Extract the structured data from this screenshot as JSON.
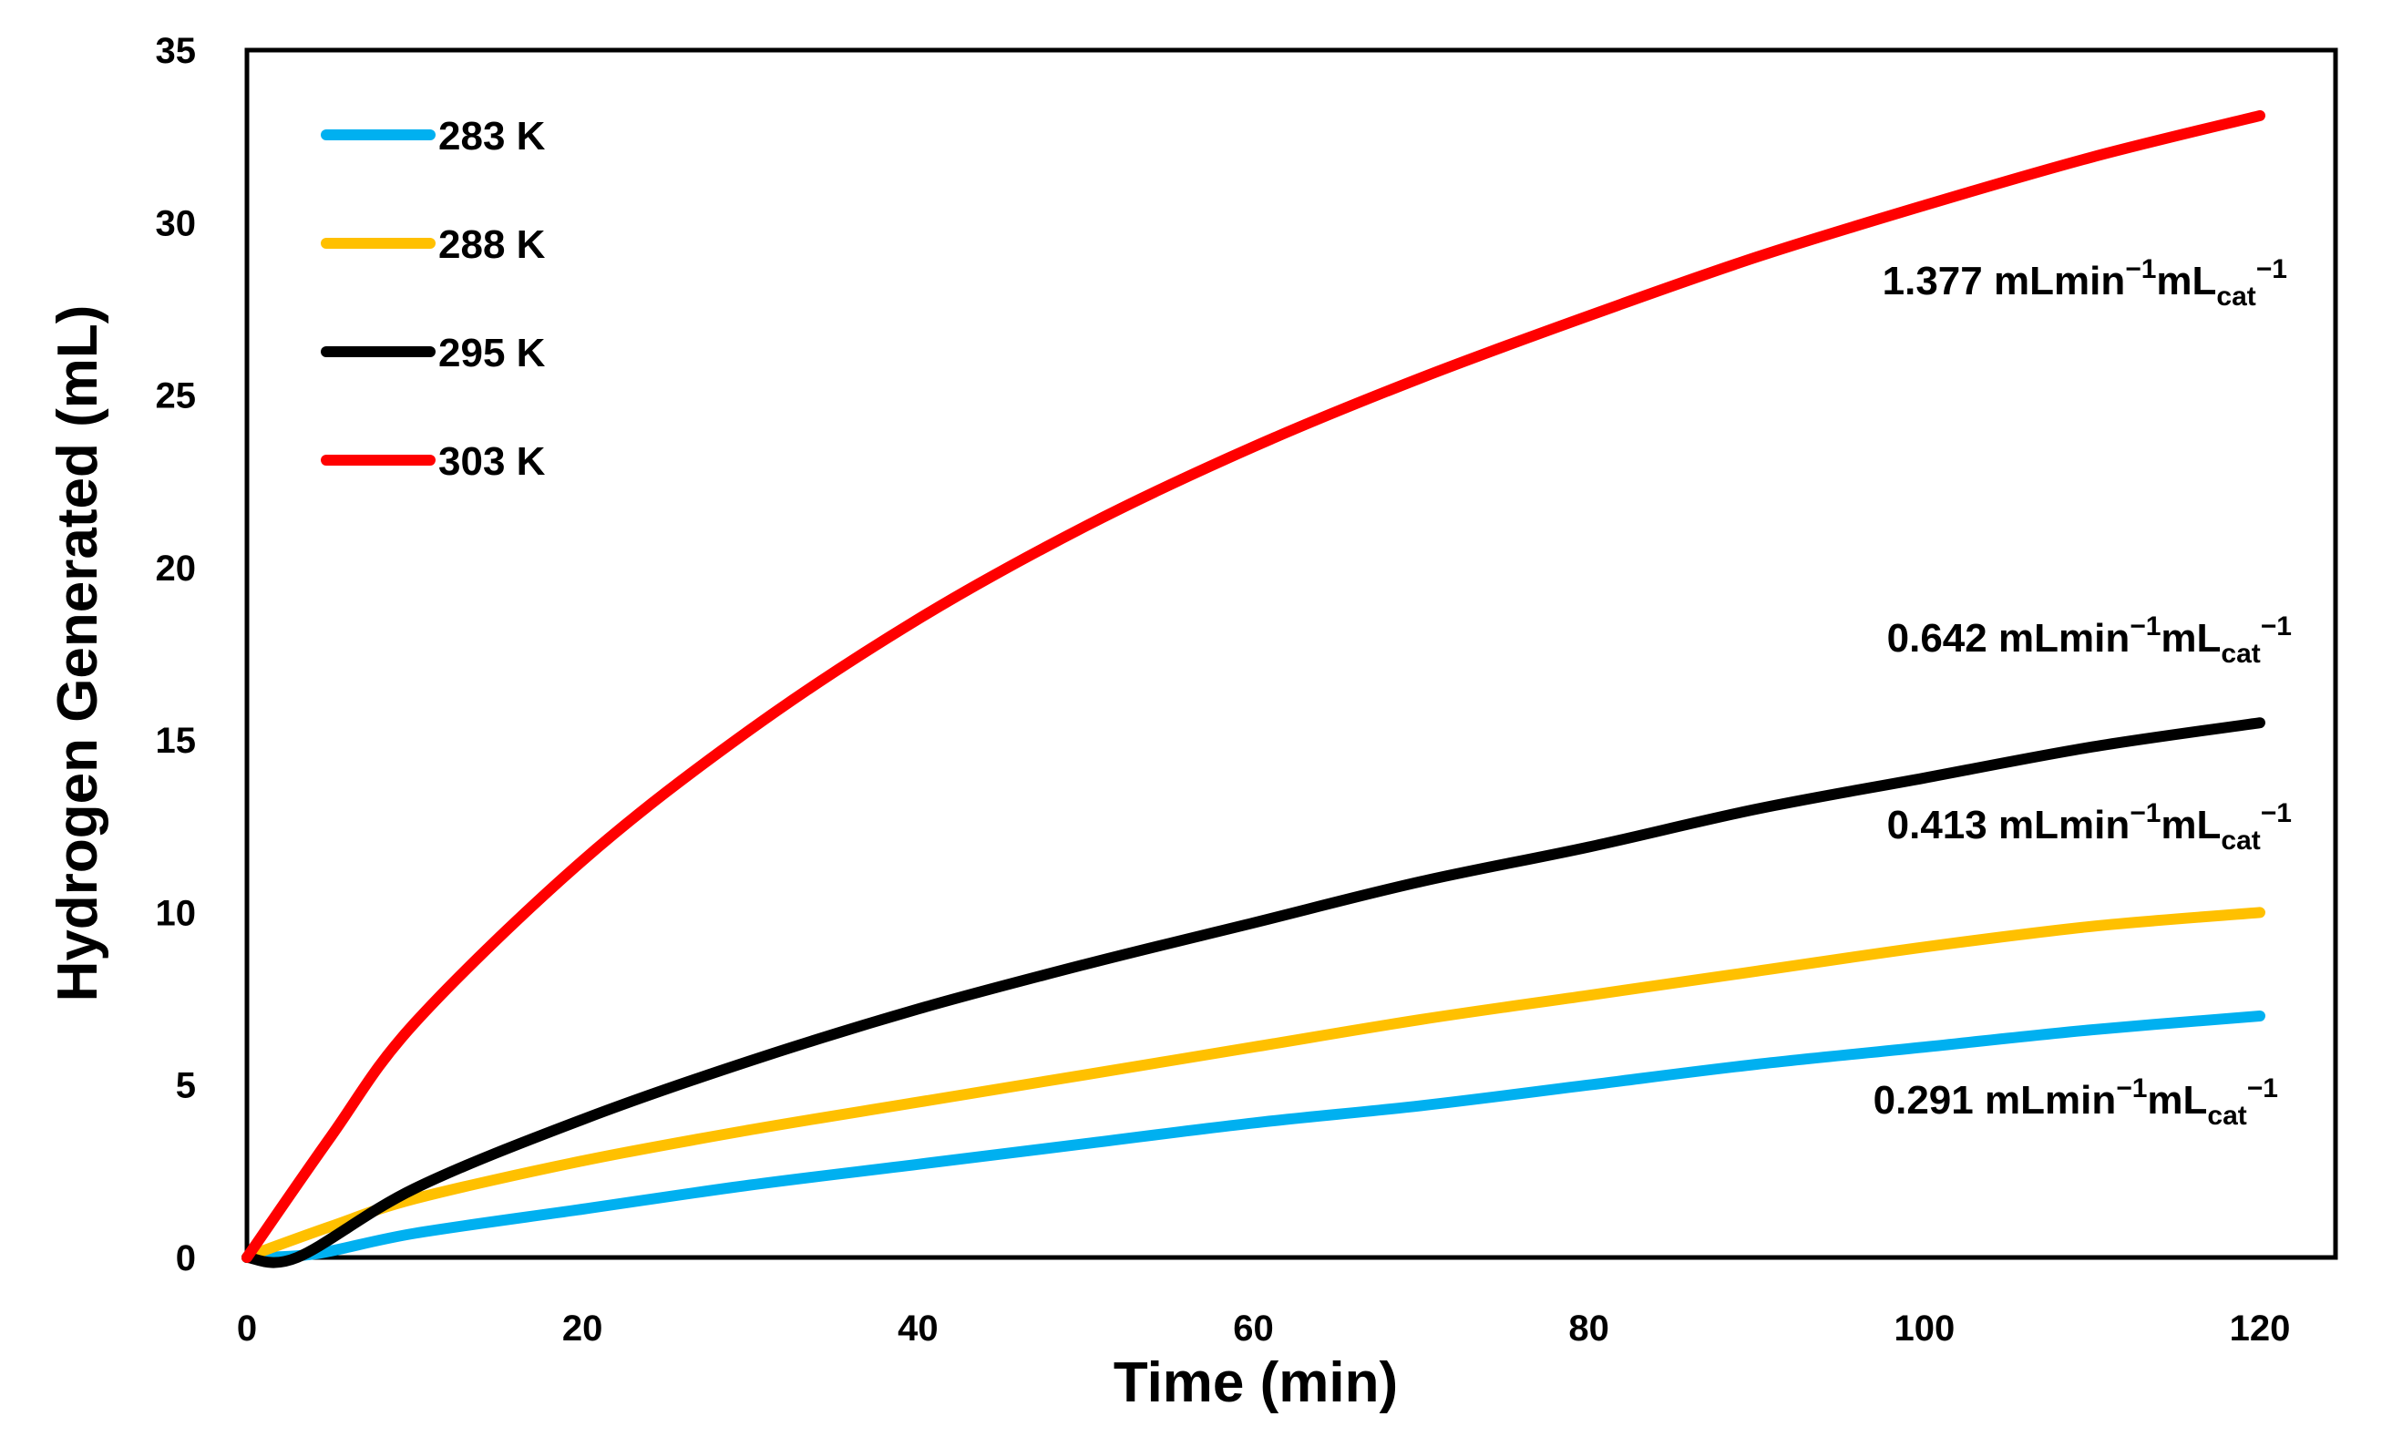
{
  "chart_data": {
    "type": "line",
    "title": "",
    "xlabel": "Time (min)",
    "ylabel": "Hydrogen Generated (mL)",
    "xlim": [
      0,
      120
    ],
    "ylim": [
      0,
      35
    ],
    "xticks": [
      0,
      20,
      40,
      60,
      80,
      100,
      120
    ],
    "yticks": [
      0,
      5,
      10,
      15,
      20,
      25,
      30,
      35
    ],
    "grid": false,
    "legend_position": "top-left",
    "series": [
      {
        "name": "283 K",
        "color": "#00B0F0",
        "x": [
          0,
          4,
          10,
          20,
          30,
          40,
          50,
          60,
          70,
          80,
          90,
          100,
          110,
          120
        ],
        "y": [
          0,
          0.1,
          0.7,
          1.4,
          2.1,
          2.7,
          3.3,
          3.9,
          4.4,
          5.0,
          5.6,
          6.1,
          6.6,
          7.0
        ]
      },
      {
        "name": "288 K",
        "color": "#FFC000",
        "x": [
          0,
          1,
          5,
          10,
          20,
          30,
          40,
          50,
          60,
          70,
          80,
          90,
          100,
          110,
          120
        ],
        "y": [
          0,
          0.2,
          0.9,
          1.7,
          2.8,
          3.7,
          4.5,
          5.3,
          6.1,
          6.9,
          7.6,
          8.3,
          9.0,
          9.6,
          10.0
        ]
      },
      {
        "name": "295 K",
        "color": "#000000",
        "x": [
          0,
          3,
          10,
          20,
          30,
          40,
          50,
          60,
          70,
          80,
          90,
          100,
          110,
          120
        ],
        "y": [
          0,
          0,
          2.0,
          4.0,
          5.7,
          7.2,
          8.5,
          9.7,
          10.9,
          11.9,
          13.0,
          13.9,
          14.8,
          15.5
        ]
      },
      {
        "name": "303 K",
        "color": "#FF0000",
        "x": [
          0,
          5,
          10,
          20,
          30,
          40,
          50,
          60,
          70,
          80,
          90,
          100,
          110,
          120
        ],
        "y": [
          0,
          3.5,
          6.8,
          11.5,
          15.3,
          18.5,
          21.2,
          23.5,
          25.5,
          27.3,
          29.0,
          30.5,
          31.9,
          33.1
        ]
      }
    ],
    "annotations": [
      {
        "series": "303 K",
        "value": "1.377 mLmin",
        "sup1": "−1",
        "mid": "mL",
        "sub": "cat",
        "sup2": "−1"
      },
      {
        "series": "295 K",
        "value": "0.642 mLmin",
        "sup1": "−1",
        "mid": "mL",
        "sub": "cat",
        "sup2": "−1"
      },
      {
        "series": "288 K",
        "value": "0.413 mLmin",
        "sup1": "−1",
        "mid": "mL",
        "sub": "cat",
        "sup2": "−1"
      },
      {
        "series": "283 K",
        "value": "0.291 mLmin",
        "sup1": "−1",
        "mid": "mL",
        "sub": "cat",
        "sup2": "−1"
      }
    ]
  }
}
